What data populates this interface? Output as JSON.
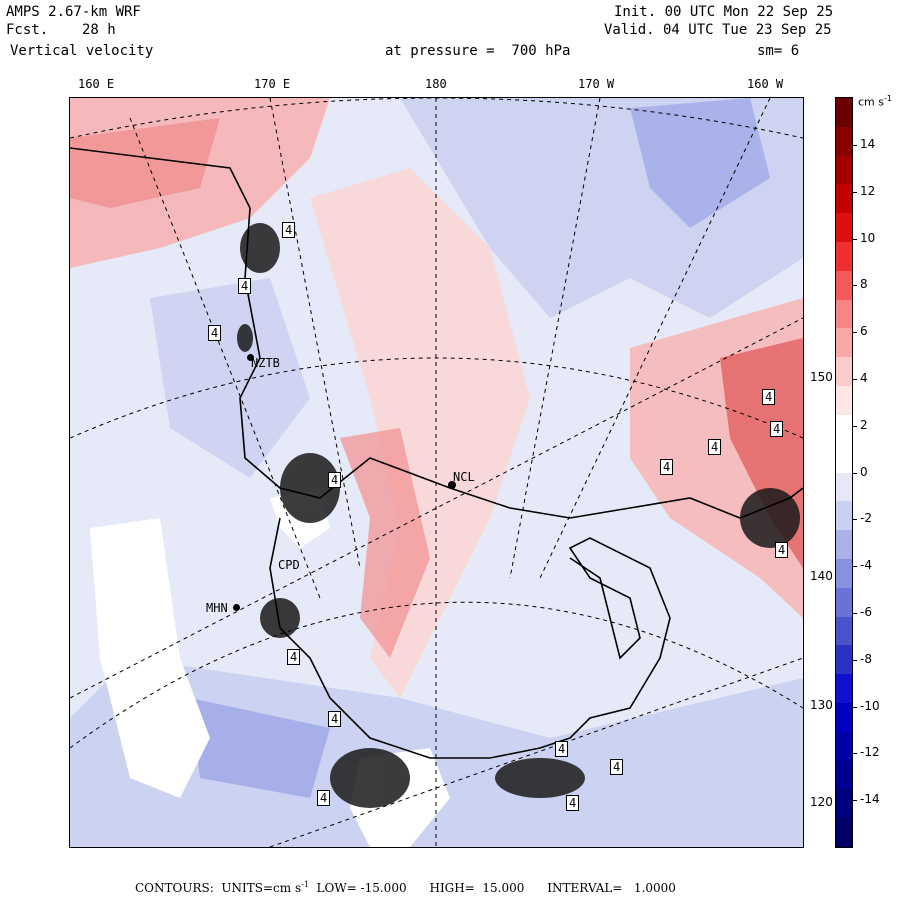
{
  "header": {
    "model": "AMPS 2.67-km WRF",
    "fcst_label": "Fcst.",
    "fcst_value": "28 h",
    "field": "Vertical velocity",
    "init": "Init. 00 UTC Mon 22 Sep 25",
    "valid": "Valid. 04 UTC Tue 23 Sep 25",
    "level": "at pressure =  700 hPa",
    "smoothing": "sm= 6"
  },
  "top_longitude_labels": [
    "160 E",
    "170 E",
    "180",
    "170 W",
    "160 W"
  ],
  "right_latitude_labels": [
    "150 W",
    "140 W",
    "130 W",
    "120 W"
  ],
  "stations": [
    "NZTB",
    "NCL",
    "CPD",
    "MHN"
  ],
  "contour_labels": [
    "4",
    "4",
    "4",
    "4",
    "4",
    "4",
    "4",
    "4",
    "4",
    "4",
    "4",
    "4",
    "4",
    "4",
    "4"
  ],
  "colorbar": {
    "units": "cm s",
    "units_exp": "-1",
    "tick_labels": [
      "14",
      "12",
      "10",
      "8",
      "6",
      "4",
      "2",
      "0",
      "-2",
      "-4",
      "-6",
      "-8",
      "-10",
      "-12",
      "-14"
    ],
    "colors": [
      "#6a0000",
      "#8b0000",
      "#a30000",
      "#c10000",
      "#dc1010",
      "#ee3030",
      "#f55a5a",
      "#f78585",
      "#f8a8a8",
      "#fbcaca",
      "#fde6e6",
      "#ffffff",
      "#ffffff",
      "#e6e8f8",
      "#cad0f2",
      "#aab2ea",
      "#8890e0",
      "#6a72d6",
      "#4a52cc",
      "#2a32c4",
      "#1010d0",
      "#0000c0",
      "#0000a8",
      "#000090",
      "#00007a",
      "#000066"
    ]
  },
  "footer": {
    "text_pre": "CONTOURS:  UNITS=cm s",
    "unit_exp": "-1",
    "text_post": "  LOW= -15.000      HIGH=  15.000      INTERVAL=   1.0000"
  }
}
